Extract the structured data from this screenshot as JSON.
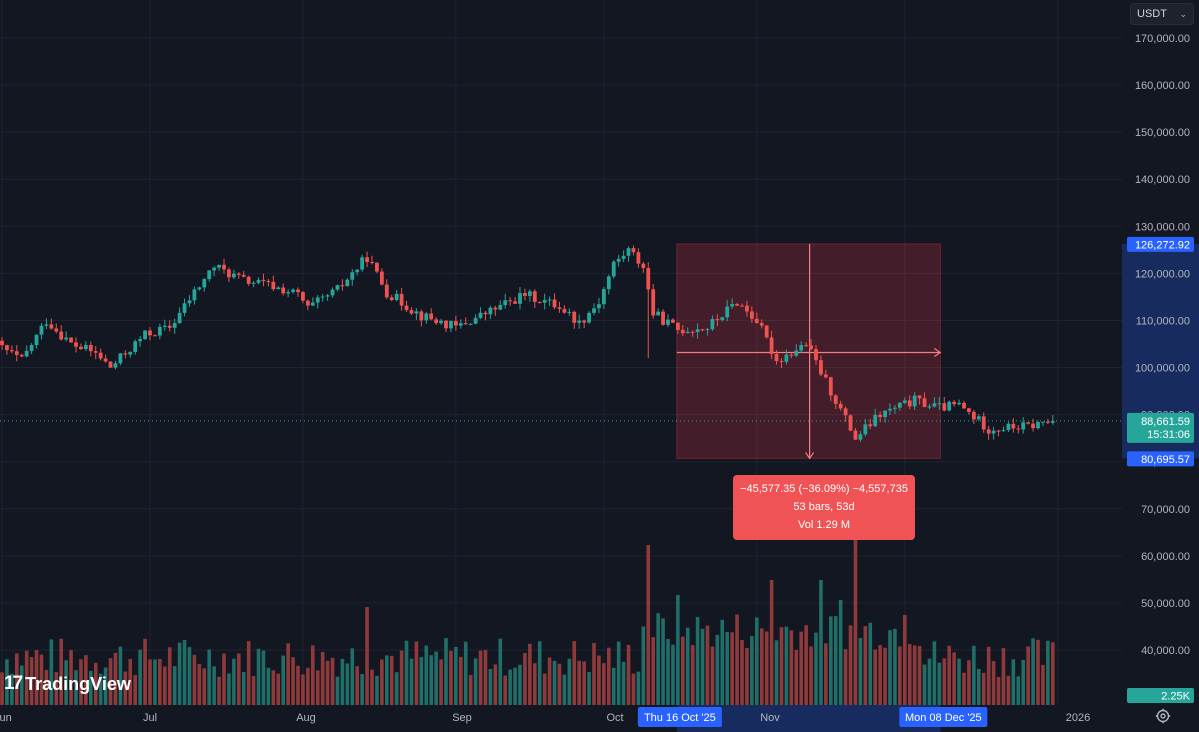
{
  "currency_selector": {
    "label": "USDT",
    "icon": "chevron-down-icon"
  },
  "branding": {
    "logo_mark": "17",
    "logo_text": "TradingView"
  },
  "settings": {
    "icon": "gear-icon"
  },
  "colors": {
    "up": "#26a69a",
    "down": "#ef5350",
    "background": "#131722",
    "grid": "#1f2330",
    "accent": "#2962ff"
  },
  "chart_data": {
    "type": "candlestick",
    "y_axis": {
      "min": 30000,
      "max": 175000,
      "ticks": [
        "170,000.00",
        "160,000.00",
        "150,000.00",
        "140,000.00",
        "130,000.00",
        "120,000.00",
        "110,000.00",
        "100,000.00",
        "90,000.00",
        "80,000.00",
        "70,000.00",
        "60,000.00",
        "50,000.00",
        "40,000.00"
      ]
    },
    "x_axis": {
      "labels": [
        "Jun",
        "Jul",
        "Aug",
        "Sep",
        "Oct",
        "Nov",
        "Dec",
        "2026"
      ]
    },
    "grid": true,
    "price_tags": {
      "high": "126,272.92",
      "last": "88,661.59",
      "countdown": "15:31:06",
      "low": "80,695.57",
      "volume": "2.25K"
    },
    "date_tags": {
      "start": "Thu 16 Oct '25",
      "end": "Mon 08 Dec '25"
    },
    "measure": {
      "line1": "−45,577.35 (−36.09%) −4,557,735",
      "line2": "53 bars, 53d",
      "line3": "Vol 1.29 M",
      "from_price": 126272.92,
      "to_price": 80695.57,
      "bars": 53,
      "volume": "1.29 M"
    },
    "price_path": [
      {
        "date": "2025-05-30",
        "close": 105500
      },
      {
        "date": "2025-06-05",
        "close": 101500
      },
      {
        "date": "2025-06-10",
        "close": 110000
      },
      {
        "date": "2025-06-15",
        "close": 105000
      },
      {
        "date": "2025-06-20",
        "close": 103000
      },
      {
        "date": "2025-06-23",
        "close": 100000
      },
      {
        "date": "2025-06-30",
        "close": 107000
      },
      {
        "date": "2025-07-05",
        "close": 108500
      },
      {
        "date": "2025-07-10",
        "close": 116000
      },
      {
        "date": "2025-07-14",
        "close": 121500
      },
      {
        "date": "2025-07-20",
        "close": 118500
      },
      {
        "date": "2025-07-25",
        "close": 117500
      },
      {
        "date": "2025-07-31",
        "close": 115500
      },
      {
        "date": "2025-08-02",
        "close": 112500
      },
      {
        "date": "2025-08-08",
        "close": 116500
      },
      {
        "date": "2025-08-14",
        "close": 123500
      },
      {
        "date": "2025-08-18",
        "close": 116000
      },
      {
        "date": "2025-08-25",
        "close": 111000
      },
      {
        "date": "2025-09-01",
        "close": 108500
      },
      {
        "date": "2025-09-07",
        "close": 111500
      },
      {
        "date": "2025-09-15",
        "close": 115500
      },
      {
        "date": "2025-09-22",
        "close": 113000
      },
      {
        "date": "2025-09-26",
        "close": 109500
      },
      {
        "date": "2025-09-30",
        "close": 114000
      },
      {
        "date": "2025-10-03",
        "close": 122000
      },
      {
        "date": "2025-10-06",
        "close": 125000
      },
      {
        "date": "2025-10-09",
        "close": 121500
      },
      {
        "date": "2025-10-11",
        "close": 111500
      },
      {
        "date": "2025-10-16",
        "close": 108000
      },
      {
        "date": "2025-10-22",
        "close": 108500
      },
      {
        "date": "2025-10-28",
        "close": 114000
      },
      {
        "date": "2025-11-01",
        "close": 110000
      },
      {
        "date": "2025-11-05",
        "close": 101500
      },
      {
        "date": "2025-11-11",
        "close": 105000
      },
      {
        "date": "2025-11-16",
        "close": 95000
      },
      {
        "date": "2025-11-21",
        "close": 85000
      },
      {
        "date": "2025-11-26",
        "close": 90000
      },
      {
        "date": "2025-12-03",
        "close": 93000
      },
      {
        "date": "2025-12-08",
        "close": 91500
      },
      {
        "date": "2025-12-12",
        "close": 92000
      },
      {
        "date": "2025-12-18",
        "close": 87000
      },
      {
        "date": "2025-12-26",
        "close": 87500
      },
      {
        "date": "2025-12-31",
        "close": 88700
      }
    ]
  }
}
